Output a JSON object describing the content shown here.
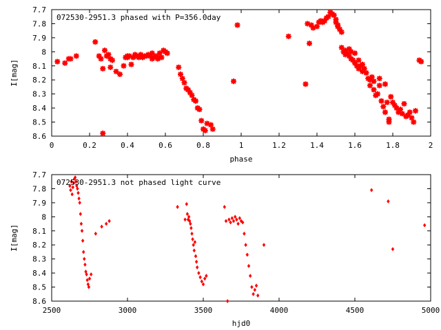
{
  "chart_data": [
    {
      "type": "scatter",
      "title": "072530-2951.3 phased with P=356.0day",
      "xlabel": "phase",
      "ylabel": "I[mag]",
      "xlim": [
        0,
        2
      ],
      "ylim": [
        8.6,
        7.7
      ],
      "y_inverted": true,
      "grid": false,
      "marker_color": "#ff0000",
      "xticks": [
        "0",
        "0.2",
        "0.4",
        "0.6",
        "0.8",
        "1",
        "1.2",
        "1.4",
        "1.6",
        "1.8",
        "2"
      ],
      "yticks": [
        "7.7",
        "7.8",
        "7.9",
        "8",
        "8.1",
        "8.2",
        "8.3",
        "8.4",
        "8.5",
        "8.6"
      ],
      "series": [
        {
          "x": [
            0.03,
            0.07,
            0.09,
            0.1,
            0.13,
            0.23,
            0.25,
            0.26,
            0.27,
            0.27,
            0.28,
            0.29,
            0.3,
            0.31,
            0.31,
            0.32,
            0.34,
            0.36,
            0.38,
            0.39,
            0.4,
            0.4,
            0.41,
            0.42,
            0.43,
            0.44,
            0.44,
            0.45,
            0.46,
            0.47,
            0.47,
            0.48,
            0.49,
            0.5,
            0.51,
            0.52,
            0.53,
            0.53,
            0.54,
            0.55,
            0.56,
            0.57,
            0.57,
            0.58,
            0.59,
            0.6,
            0.61,
            0.67,
            0.68,
            0.69,
            0.7,
            0.71,
            0.72,
            0.73,
            0.74,
            0.75,
            0.76,
            0.77,
            0.78,
            0.79,
            0.8,
            0.81,
            0.82,
            0.84,
            0.85,
            0.96,
            0.98,
            1.25,
            1.34,
            1.35,
            1.36,
            1.37,
            1.38,
            1.4,
            1.41,
            1.42,
            1.43,
            1.44,
            1.45,
            1.46,
            1.47,
            1.48,
            1.49,
            1.5,
            1.5,
            1.51,
            1.51,
            1.52,
            1.53,
            1.53,
            1.54,
            1.55,
            1.55,
            1.56,
            1.57,
            1.57,
            1.58,
            1.58,
            1.59,
            1.6,
            1.6,
            1.61,
            1.62,
            1.62,
            1.63,
            1.64,
            1.64,
            1.65,
            1.66,
            1.67,
            1.68,
            1.68,
            1.69,
            1.7,
            1.7,
            1.71,
            1.72,
            1.73,
            1.73,
            1.74,
            1.75,
            1.76,
            1.76,
            1.77,
            1.78,
            1.78,
            1.79,
            1.8,
            1.81,
            1.82,
            1.83,
            1.84,
            1.85,
            1.86,
            1.87,
            1.88,
            1.89,
            1.9,
            1.91,
            1.92,
            1.94,
            1.95
          ],
          "y": [
            8.07,
            8.08,
            8.05,
            8.05,
            8.03,
            7.93,
            8.03,
            8.05,
            8.58,
            8.12,
            7.99,
            8.03,
            8.02,
            8.11,
            8.05,
            8.06,
            8.14,
            8.16,
            8.1,
            8.04,
            8.04,
            8.03,
            8.03,
            8.09,
            8.04,
            8.02,
            8.03,
            8.03,
            8.04,
            8.03,
            8.02,
            8.04,
            8.03,
            8.03,
            8.02,
            8.03,
            8.05,
            8.01,
            8.04,
            8.03,
            8.05,
            8.04,
            8.01,
            8.04,
            7.99,
            8.0,
            8.01,
            8.11,
            8.16,
            8.19,
            8.22,
            8.26,
            8.27,
            8.29,
            8.31,
            8.34,
            8.35,
            8.4,
            8.41,
            8.49,
            8.55,
            8.56,
            8.51,
            8.52,
            8.55,
            8.21,
            7.81,
            7.89,
            8.23,
            7.8,
            7.94,
            7.81,
            7.83,
            7.82,
            7.79,
            7.78,
            7.79,
            7.78,
            7.76,
            7.75,
            7.72,
            7.73,
            7.74,
            7.77,
            7.79,
            7.81,
            7.82,
            7.84,
            7.86,
            7.97,
            8.0,
            8.02,
            7.99,
            8.01,
            7.98,
            8.03,
            8.05,
            8.0,
            8.06,
            8.08,
            8.01,
            8.1,
            8.06,
            8.12,
            8.1,
            8.14,
            8.09,
            8.12,
            8.15,
            8.19,
            8.2,
            8.24,
            8.18,
            8.21,
            8.27,
            8.31,
            8.3,
            8.19,
            8.24,
            8.35,
            8.39,
            8.23,
            8.43,
            8.36,
            8.48,
            8.5,
            8.32,
            8.36,
            8.38,
            8.4,
            8.43,
            8.41,
            8.44,
            8.37,
            8.46,
            8.45,
            8.43,
            8.47,
            8.5,
            8.42,
            8.06,
            8.07
          ]
        }
      ]
    },
    {
      "type": "scatter",
      "title": "072530-2951.3 not phased light curve",
      "xlabel": "hjd0",
      "ylabel": "I[mag]",
      "xlim": [
        2500,
        5000
      ],
      "ylim": [
        8.6,
        7.7
      ],
      "y_inverted": true,
      "grid": false,
      "marker_color": "#ff0000",
      "xticks": [
        "2500",
        "3000",
        "3500",
        "4000",
        "4500",
        "5000"
      ],
      "yticks": [
        "7.7",
        "7.8",
        "7.9",
        "8",
        "8.1",
        "8.2",
        "8.3",
        "8.4",
        "8.5",
        "8.6"
      ],
      "series": [
        {
          "x": [
            2620,
            2625,
            2630,
            2635,
            2640,
            2645,
            2650,
            2655,
            2660,
            2665,
            2670,
            2675,
            2680,
            2685,
            2690,
            2695,
            2700,
            2705,
            2710,
            2715,
            2720,
            2725,
            2730,
            2735,
            2740,
            2745,
            2750,
            2760,
            2790,
            2830,
            2860,
            2880,
            3330,
            3380,
            3390,
            3395,
            3400,
            3405,
            3410,
            3415,
            3420,
            3425,
            3430,
            3435,
            3440,
            3445,
            3450,
            3455,
            3460,
            3470,
            3480,
            3490,
            3500,
            3510,
            3520,
            3640,
            3650,
            3660,
            3670,
            3680,
            3690,
            3700,
            3710,
            3720,
            3730,
            3740,
            3750,
            3760,
            3770,
            3780,
            3790,
            3800,
            3810,
            3820,
            3830,
            3840,
            3850,
            3860,
            3900,
            4610,
            4720,
            4750,
            4960
          ],
          "y": [
            7.78,
            7.81,
            7.75,
            7.84,
            7.79,
            7.76,
            7.73,
            7.72,
            7.75,
            7.78,
            7.8,
            7.83,
            7.87,
            7.9,
            7.98,
            8.05,
            8.1,
            8.17,
            8.25,
            8.3,
            8.34,
            8.39,
            8.41,
            8.45,
            8.48,
            8.5,
            8.44,
            8.41,
            8.12,
            8.07,
            8.05,
            8.03,
            7.93,
            8.02,
            7.91,
            7.98,
            8.02,
            8.0,
            8.03,
            8.05,
            8.08,
            8.12,
            8.16,
            8.2,
            8.24,
            8.18,
            8.28,
            8.32,
            8.36,
            8.4,
            8.43,
            8.46,
            8.48,
            8.44,
            8.42,
            7.93,
            8.03,
            8.6,
            8.02,
            8.04,
            8.01,
            8.03,
            8.0,
            8.02,
            8.05,
            8.01,
            8.03,
            8.04,
            8.12,
            8.2,
            8.27,
            8.35,
            8.42,
            8.5,
            8.55,
            8.52,
            8.49,
            8.56,
            8.2,
            7.81,
            7.89,
            8.23,
            8.06
          ]
        }
      ]
    }
  ]
}
